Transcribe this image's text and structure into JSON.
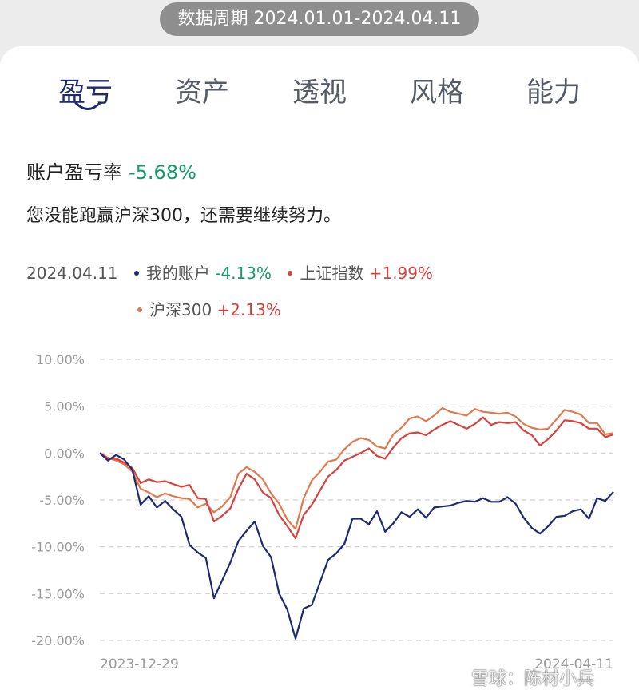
{
  "period_label": "数据周期 2024.01.01-2024.04.11",
  "tabs": [
    {
      "label": "盈亏",
      "active": true
    },
    {
      "label": "资产",
      "active": false
    },
    {
      "label": "透视",
      "active": false
    },
    {
      "label": "风格",
      "active": false
    },
    {
      "label": "能力",
      "active": false
    }
  ],
  "summary": {
    "title": "账户盈亏率",
    "value": "-5.68%",
    "message": "您没能跑赢沪深300，还需要继续努力。"
  },
  "legend": {
    "date": "2024.04.11",
    "items": [
      {
        "name": "我的账户",
        "value": "-4.13%",
        "color": "#1d2a72",
        "value_color": "#139c6a"
      },
      {
        "name": "上证指数",
        "value": "+1.99%",
        "color": "#d8413d",
        "value_color": "#d8413d"
      },
      {
        "name": "沪深300",
        "value": "+2.13%",
        "color": "#e07a4f",
        "value_color": "#d8413d"
      }
    ]
  },
  "watermark": "雪球：陈材小兵",
  "chart_data": {
    "type": "line",
    "ylim": [
      -20,
      10
    ],
    "yticks": [
      "10.00%",
      "5.00%",
      "0.00%",
      "-5.00%",
      "-10.00%",
      "-15.00%",
      "-20.00%"
    ],
    "ytick_values": [
      10,
      5,
      0,
      -5,
      -10,
      -15,
      -20
    ],
    "xticks": [
      "2023-12-29",
      "2024-04-11"
    ],
    "grid": true,
    "series": [
      {
        "name": "我的账户",
        "color": "#1d2a72",
        "values": [
          0,
          -0.8,
          -0.2,
          -0.7,
          -1.8,
          -5.5,
          -4.6,
          -5.8,
          -5.1,
          -6.0,
          -6.8,
          -9.8,
          -10.6,
          -11.2,
          -15.5,
          -13.6,
          -11.7,
          -9.4,
          -8.3,
          -7.3,
          -9.9,
          -11.1,
          -15.0,
          -16.7,
          -19.8,
          -16.6,
          -16.2,
          -13.8,
          -11.4,
          -10.7,
          -9.7,
          -7.0,
          -7.0,
          -7.6,
          -6.2,
          -8.4,
          -7.5,
          -6.3,
          -6.8,
          -6.0,
          -6.9,
          -5.8,
          -5.7,
          -5.6,
          -5.3,
          -5.1,
          -5.2,
          -4.8,
          -5.2,
          -5.2,
          -4.7,
          -5.4,
          -6.9,
          -8.0,
          -8.6,
          -7.8,
          -6.8,
          -6.7,
          -6.2,
          -6.0,
          -7.0,
          -4.8,
          -5.1,
          -4.13
        ]
      },
      {
        "name": "上证指数",
        "color": "#d8413d",
        "values": [
          0,
          -0.6,
          -0.6,
          -1.0,
          -1.6,
          -3.2,
          -2.8,
          -3.1,
          -3.0,
          -3.3,
          -3.6,
          -3.4,
          -4.8,
          -4.9,
          -7.3,
          -6.7,
          -5.9,
          -3.8,
          -2.2,
          -2.8,
          -4.2,
          -4.8,
          -6.6,
          -7.8,
          -9.1,
          -6.6,
          -5.5,
          -4.0,
          -2.5,
          -1.8,
          -0.8,
          -0.4,
          0.0,
          0.5,
          -0.3,
          -0.6,
          0.6,
          1.6,
          2.1,
          2.2,
          1.9,
          2.5,
          3.0,
          3.4,
          3.0,
          2.6,
          3.1,
          3.8,
          3.0,
          3.3,
          3.2,
          3.3,
          2.4,
          1.9,
          0.8,
          1.5,
          2.4,
          3.5,
          3.4,
          3.2,
          2.6,
          2.6,
          1.7,
          1.99
        ]
      },
      {
        "name": "沪深300",
        "color": "#e07a4f",
        "values": [
          0,
          -0.5,
          -0.8,
          -1.2,
          -2.0,
          -3.8,
          -4.2,
          -4.7,
          -4.3,
          -4.6,
          -4.8,
          -4.9,
          -5.8,
          -5.4,
          -6.3,
          -5.7,
          -4.7,
          -2.2,
          -1.5,
          -2.0,
          -2.8,
          -4.3,
          -5.4,
          -7.1,
          -8.1,
          -4.8,
          -2.9,
          -2.0,
          -0.9,
          -0.7,
          0.4,
          1.2,
          1.6,
          1.4,
          0.7,
          0.5,
          2.0,
          2.7,
          3.7,
          3.9,
          3.4,
          4.0,
          4.8,
          4.4,
          4.2,
          4.0,
          4.7,
          4.4,
          4.3,
          4.2,
          4.3,
          3.9,
          3.1,
          2.7,
          2.5,
          2.6,
          3.6,
          4.6,
          4.4,
          4.1,
          3.2,
          3.2,
          2.0,
          2.13
        ]
      }
    ]
  }
}
